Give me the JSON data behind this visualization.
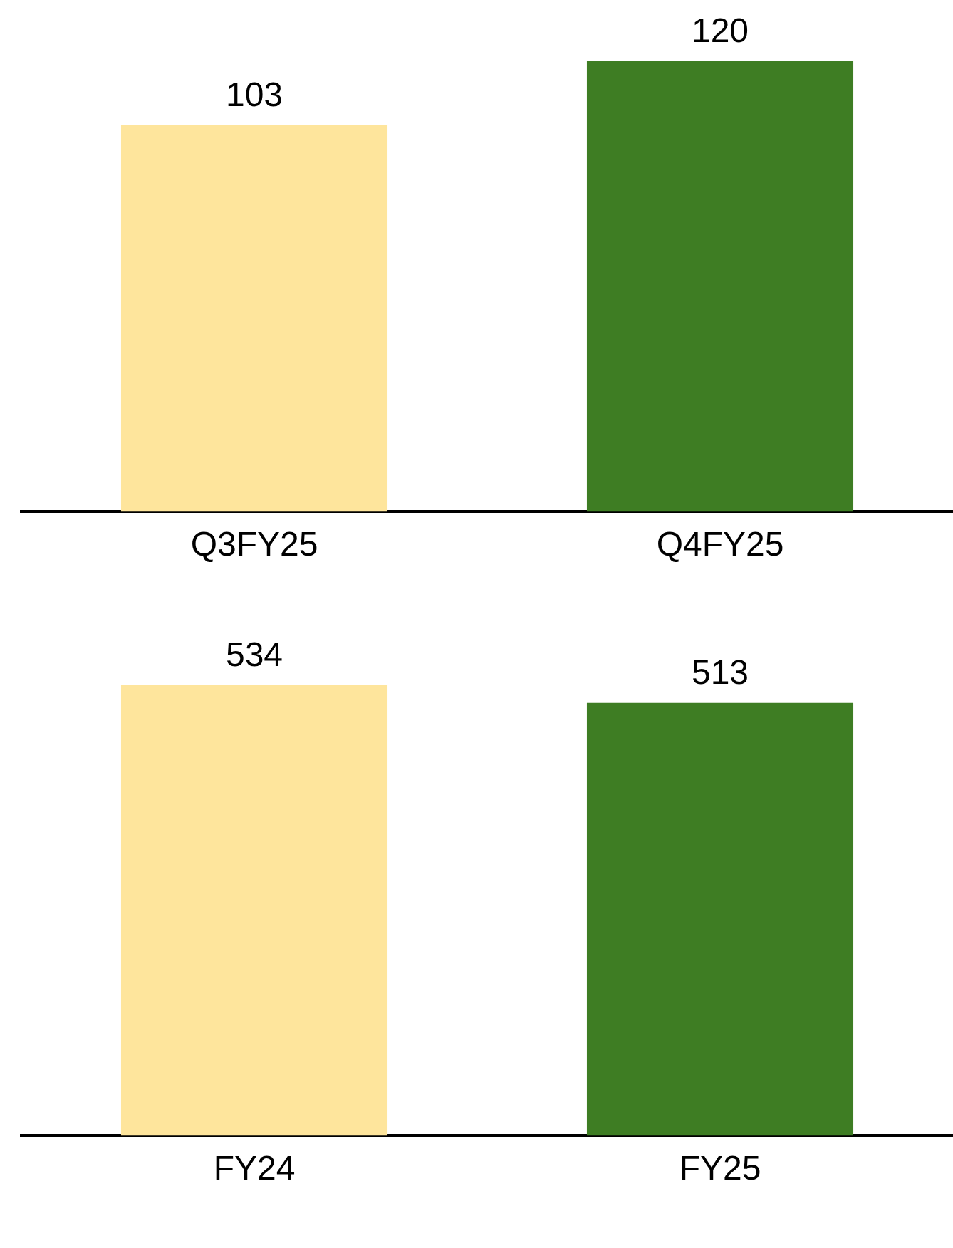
{
  "chart_data": [
    {
      "type": "bar",
      "categories": [
        "Q3FY25",
        "Q4FY25"
      ],
      "values": [
        103,
        120
      ],
      "colors": [
        "#fee59c",
        "#3e7d23"
      ],
      "data_labels": true,
      "grid": false,
      "legend": false
    },
    {
      "type": "bar",
      "categories": [
        "FY24",
        "FY25"
      ],
      "values": [
        534,
        513
      ],
      "colors": [
        "#fee59c",
        "#3e7d23"
      ],
      "data_labels": true,
      "grid": false,
      "legend": false
    }
  ]
}
